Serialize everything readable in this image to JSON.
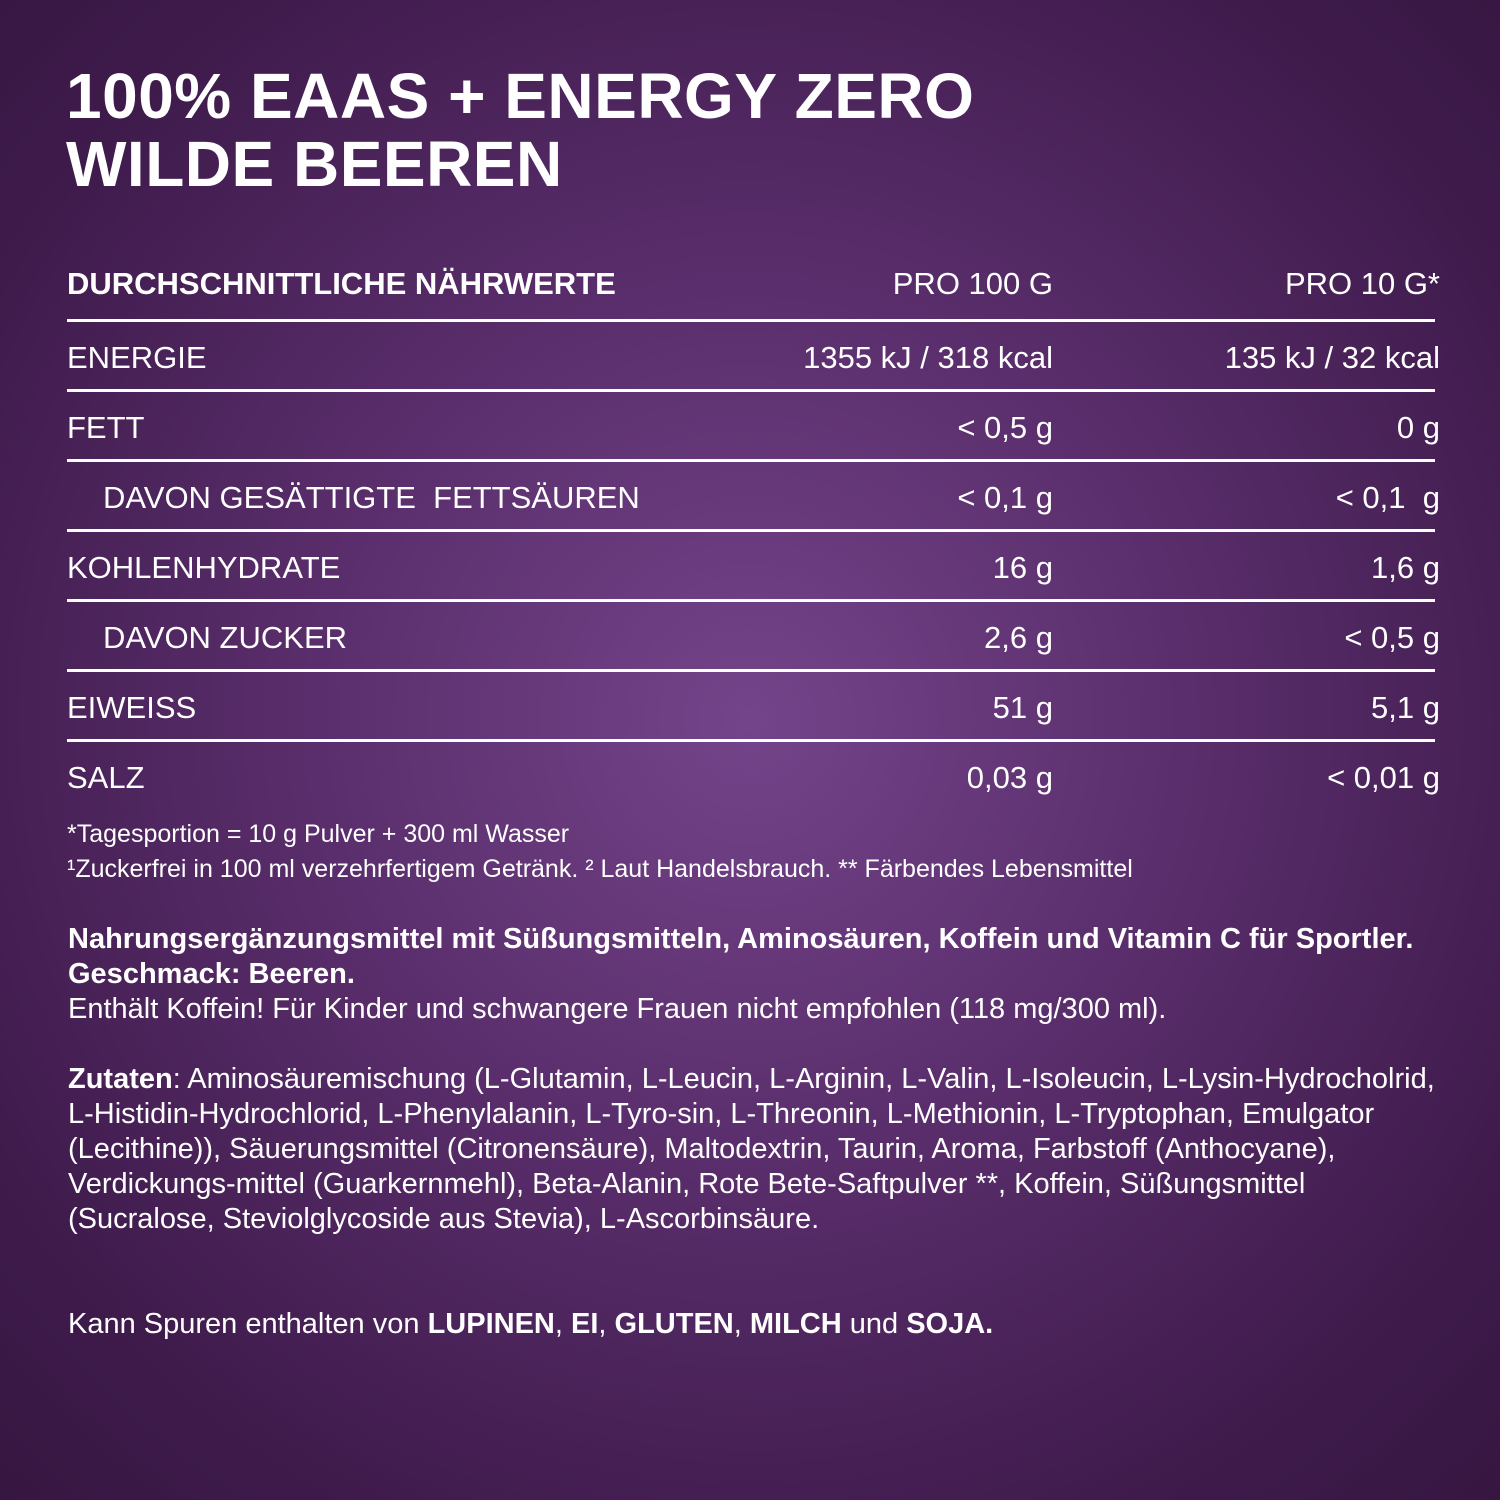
{
  "title": {
    "line1": "100% EAAS + ENERGY ZERO",
    "line2": "WILDE BEEREN"
  },
  "table": {
    "headers": [
      "DURCHSCHNITTLICHE NÄHRWERTE",
      "PRO 100 G",
      "PRO 10 G*"
    ],
    "rows": [
      {
        "label": "ENERGIE",
        "per100": "1355 kJ / 318 kcal",
        "per10": "135 kJ / 32 kcal"
      },
      {
        "label": "FETT",
        "per100": "< 0,5 g",
        "per10": "0 g"
      },
      {
        "label": "DAVON GESÄTTIGTE  FETTSÄUREN",
        "per100": "< 0,1 g",
        "per10": "< 0,1  g"
      },
      {
        "label": "KOHLENHYDRATE",
        "per100": "16 g",
        "per10": "1,6 g"
      },
      {
        "label": "DAVON ZUCKER",
        "per100": "2,6 g",
        "per10": "< 0,5 g"
      },
      {
        "label": "EIWEISS",
        "per100": "51 g",
        "per10": "5,1 g"
      },
      {
        "label": "SALZ",
        "per100": "0,03 g",
        "per10": "< 0,01 g"
      }
    ]
  },
  "footnotes": {
    "line1": "*Tagesportion = 10 g Pulver + 300 ml Wasser",
    "line2": "¹Zuckerfrei in 100 ml verzehrfertigem Getränk. ² Laut Handelsbrauch. ** Färbendes Lebensmittel"
  },
  "description": {
    "bold": "Nahrungsergänzungsmittel mit Süßungsmitteln, Aminosäuren, Koffein und Vitamin C für Sportler. Geschmack: Beeren.",
    "warning": "Enthält Koffein! Für Kinder und schwangere Frauen nicht empfohlen (118 mg/300 ml)."
  },
  "ingredients": {
    "label": "Zutaten",
    "text": ": Aminosäuremischung (L-Glutamin, L-Leucin, L-Arginin, L-Valin, L-Isoleucin, L-Lysin-Hydrocholrid, L-Histidin-Hydrochlorid, L-Phenylalanin, L-Tyro-sin, L-Threonin, L-Methionin, L-Tryptophan, Emulgator (Lecithine)), Säuerungsmittel (Citronensäure), Maltodextrin, Taurin, Aroma, Farbstoff (Anthocyane), Verdickungs-mittel (Guarkernmehl), Beta-Alanin, Rote Bete-Saftpulver **, Koffein, Süßungsmittel (Sucralose, Steviolglycoside aus Stevia), L-Ascorbinsäure."
  },
  "allergens": {
    "prefix": "Kann Spuren enthalten von ",
    "a1": "LUPINEN",
    "s1": ", ",
    "a2": "EI",
    "s2": ", ",
    "a3": "GLUTEN",
    "s3": ", ",
    "a4": "MILCH",
    "s4": " und ",
    "a5": "SOJA."
  }
}
